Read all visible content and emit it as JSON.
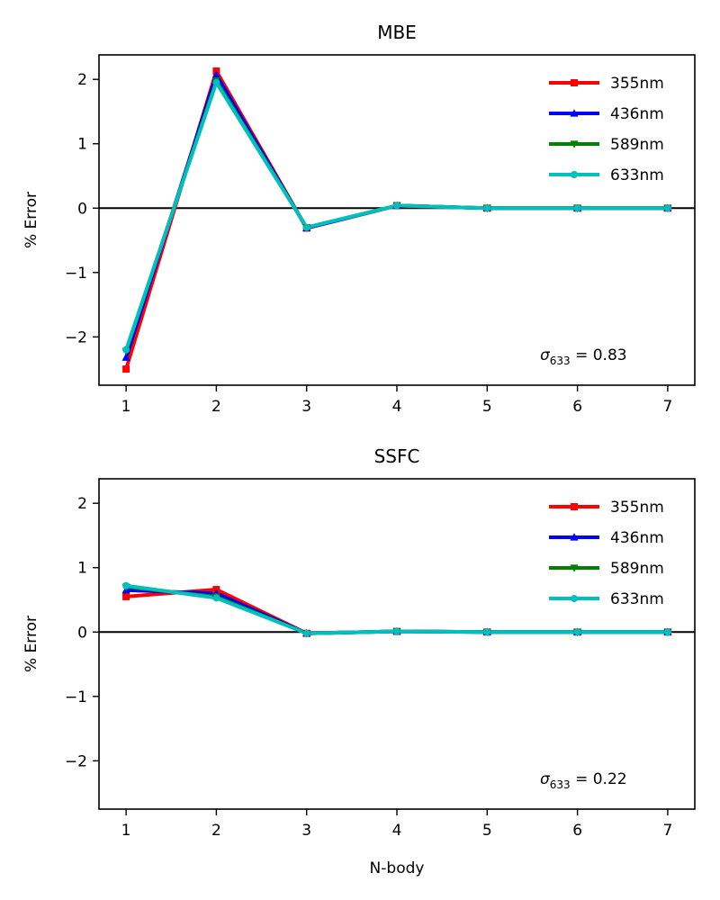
{
  "figure": {
    "xlabel": "N-body"
  },
  "chart_data": [
    {
      "type": "line",
      "title": "MBE",
      "xlabel": "",
      "ylabel": "% Error",
      "x": [
        1,
        2,
        3,
        4,
        5,
        6,
        7
      ],
      "xlim": [
        0.7,
        7.3
      ],
      "ylim": [
        -2.75,
        2.38
      ],
      "xticks": [
        1,
        2,
        3,
        4,
        5,
        6,
        7
      ],
      "yticks": [
        -2,
        -1,
        0,
        1,
        2
      ],
      "ytick_labels": [
        "−2",
        "−1",
        "0",
        "1",
        "2"
      ],
      "reference_line_y": 0,
      "grid": false,
      "legend_position": "top-right",
      "annotation": {
        "symbol": "σ",
        "subscript": "633",
        "text": " = 0.83"
      },
      "series": [
        {
          "name": "355nm",
          "color": "#ff0000",
          "marker": "square",
          "values": [
            -2.5,
            2.13,
            -0.31,
            0.04,
            0.0,
            0.0,
            0.0
          ]
        },
        {
          "name": "436nm",
          "color": "#0000ff",
          "marker": "triangle-up",
          "values": [
            -2.32,
            2.07,
            -0.31,
            0.04,
            0.0,
            0.0,
            0.0
          ]
        },
        {
          "name": "589nm",
          "color": "#008000",
          "marker": "triangle-down",
          "values": [
            -2.22,
            1.98,
            -0.3,
            0.04,
            0.0,
            0.0,
            0.0
          ]
        },
        {
          "name": "633nm",
          "color": "#00bfbf",
          "marker": "circle",
          "values": [
            -2.2,
            1.95,
            -0.3,
            0.04,
            0.0,
            0.0,
            0.0
          ]
        }
      ]
    },
    {
      "type": "line",
      "title": "SSFC",
      "xlabel": "N-body",
      "ylabel": "% Error",
      "x": [
        1,
        2,
        3,
        4,
        5,
        6,
        7
      ],
      "xlim": [
        0.7,
        7.3
      ],
      "ylim": [
        -2.75,
        2.38
      ],
      "xticks": [
        1,
        2,
        3,
        4,
        5,
        6,
        7
      ],
      "yticks": [
        -2,
        -1,
        0,
        1,
        2
      ],
      "ytick_labels": [
        "−2",
        "−1",
        "0",
        "1",
        "2"
      ],
      "reference_line_y": 0,
      "grid": false,
      "legend_position": "top-right",
      "annotation": {
        "symbol": "σ",
        "subscript": "633",
        "text": " = 0.22"
      },
      "series": [
        {
          "name": "355nm",
          "color": "#ff0000",
          "marker": "square",
          "values": [
            0.55,
            0.66,
            -0.02,
            0.01,
            0.0,
            0.0,
            0.0
          ]
        },
        {
          "name": "436nm",
          "color": "#0000ff",
          "marker": "triangle-up",
          "values": [
            0.65,
            0.6,
            -0.02,
            0.01,
            0.0,
            0.0,
            0.0
          ]
        },
        {
          "name": "589nm",
          "color": "#008000",
          "marker": "triangle-down",
          "values": [
            0.7,
            0.55,
            -0.02,
            0.01,
            0.0,
            0.0,
            0.0
          ]
        },
        {
          "name": "633nm",
          "color": "#00bfbf",
          "marker": "circle",
          "values": [
            0.72,
            0.53,
            -0.02,
            0.01,
            0.0,
            0.0,
            0.0
          ]
        }
      ]
    }
  ]
}
